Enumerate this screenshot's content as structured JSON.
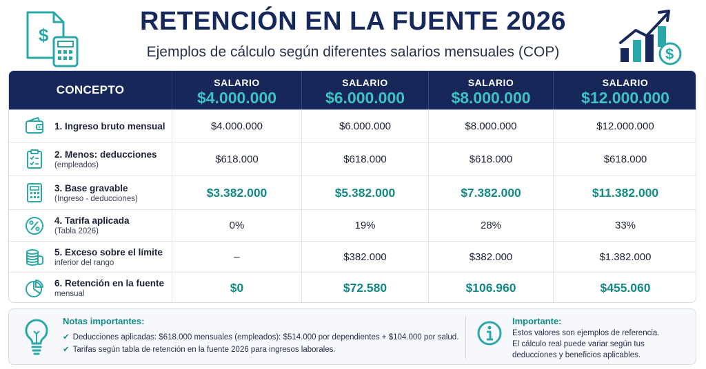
{
  "header": {
    "title": "RETENCIÓN EN LA FUENTE 2026",
    "subtitle": "Ejemplos de cálculo según diferentes salarios mensuales (COP)",
    "left_icon": "document-dollar-calculator-icon",
    "right_icon": "growth-chart-dollar-icon"
  },
  "table": {
    "concept_header": "CONCEPTO",
    "salary_label": "SALARIO",
    "columns": [
      "$4.000.000",
      "$6.000.000",
      "$8.000.000",
      "$12.000.000"
    ],
    "rows": [
      {
        "icon": "wallet-icon",
        "label": "1. Ingreso bruto mensual",
        "sub": "",
        "values": [
          "$4.000.000",
          "$6.000.000",
          "$8.000.000",
          "$12.000.000"
        ],
        "emphasis": false
      },
      {
        "icon": "clipboard-checklist-icon",
        "label": "2. Menos: deducciones",
        "sub": "(empleados)",
        "values": [
          "$618.000",
          "$618.000",
          "$618.000",
          "$618.000"
        ],
        "emphasis": false
      },
      {
        "icon": "calculator-icon",
        "label": "3. Base gravable",
        "sub": "(Ingreso - deducciones)",
        "values": [
          "$3.382.000",
          "$5.382.000",
          "$7.382.000",
          "$11.382.000"
        ],
        "emphasis": true
      },
      {
        "icon": "percent-icon",
        "label": "4. Tarifa aplicada",
        "sub": "(Tabla 2026)",
        "values": [
          "0%",
          "19%",
          "28%",
          "33%"
        ],
        "emphasis": false
      },
      {
        "icon": "coins-stack-icon",
        "label": "5. Exceso sobre el límite",
        "sub": "inferior del rango",
        "values": [
          "–",
          "$382.000",
          "$382.000",
          "$1.382.000"
        ],
        "emphasis": false
      },
      {
        "icon": "pie-chart-icon",
        "label": "6. Retención en la fuente",
        "sub": "mensual",
        "values": [
          "$0",
          "$72.580",
          "$106.960",
          "$455.060"
        ],
        "emphasis": true
      }
    ]
  },
  "notes": {
    "title": "Notas importantes:",
    "items": [
      "Deducciones aplicadas: $618.000 mensuales (empleados): $514.000 por dependientes + $104.000 por salud.",
      "Tarifas según tabla de retención en la fuente 2026 para ingresos laborales."
    ],
    "icon": "lightbulb-icon"
  },
  "important": {
    "title": "Importante:",
    "lines": [
      "Estos valores son ejemplos de referencia.",
      "El cálculo real puede variar según tus",
      "deducciones y beneficios aplicables."
    ],
    "icon": "info-icon"
  },
  "colors": {
    "navy": "#17275a",
    "teal": "#138a86",
    "teal_light": "#3fc2c2"
  }
}
